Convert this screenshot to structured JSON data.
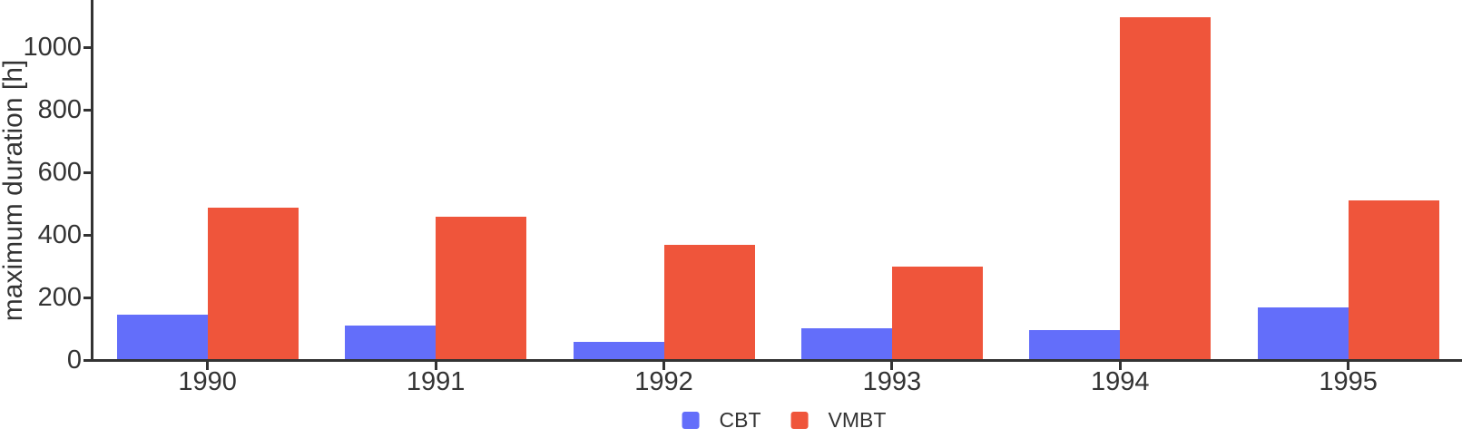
{
  "chart_data": {
    "type": "bar",
    "categories": [
      "1990",
      "1991",
      "1992",
      "1993",
      "1994",
      "1995"
    ],
    "series": [
      {
        "name": "CBT",
        "color": "#636EFA",
        "values": [
          145,
          110,
          57,
          102,
          95,
          168
        ]
      },
      {
        "name": "VMBT",
        "color": "#EF553B",
        "values": [
          488,
          458,
          368,
          298,
          1096,
          510
        ]
      }
    ],
    "title": "",
    "xlabel": "",
    "ylabel": "maximum duration [h]",
    "yticks": [
      0,
      200,
      400,
      600,
      800,
      1000
    ],
    "ylim": [
      0,
      1155
    ],
    "grid": false,
    "legend_position": "bottom-center",
    "colors": {
      "axis": "#333333",
      "text": "#333333",
      "background": "#ffffff"
    }
  }
}
